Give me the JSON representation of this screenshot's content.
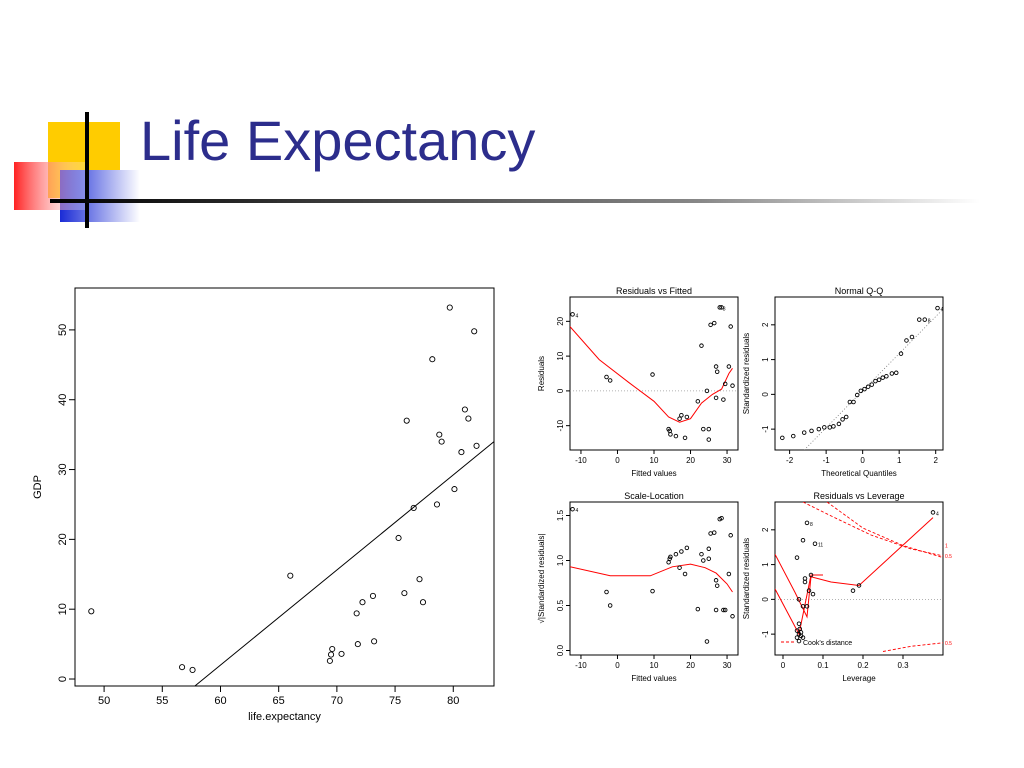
{
  "slide": {
    "title": "Life Expectancy",
    "colors": {
      "title": "#2c2d8c",
      "accent_yellow": "#ffcc00",
      "accent_blue": "#2233cc",
      "accent_red": "#ff3b3b",
      "fit_line": "#ff0000"
    }
  },
  "chart_data": [
    {
      "type": "scatter",
      "title": "",
      "xlabel": "life.expectancy",
      "ylabel": "GDP",
      "xlim": [
        47.5,
        83.5
      ],
      "ylim": [
        -1,
        56
      ],
      "xticks": [
        50,
        55,
        60,
        65,
        70,
        75,
        80
      ],
      "yticks": [
        0,
        10,
        20,
        30,
        40,
        50
      ],
      "grid": false,
      "points": [
        [
          48.9,
          9.7
        ],
        [
          56.7,
          1.7
        ],
        [
          57.6,
          1.3
        ],
        [
          66,
          14.8
        ],
        [
          69.4,
          2.6
        ],
        [
          69.5,
          3.5
        ],
        [
          69.6,
          4.3
        ],
        [
          70.4,
          3.6
        ],
        [
          71.7,
          9.4
        ],
        [
          71.8,
          5
        ],
        [
          72.2,
          11
        ],
        [
          73.1,
          11.9
        ],
        [
          73.2,
          5.4
        ],
        [
          75.3,
          20.2
        ],
        [
          75.8,
          12.3
        ],
        [
          76,
          37
        ],
        [
          76.6,
          24.5
        ],
        [
          77.1,
          14.3
        ],
        [
          77.4,
          11
        ],
        [
          78.2,
          45.8
        ],
        [
          78.6,
          25
        ],
        [
          78.8,
          35
        ],
        [
          79,
          34
        ],
        [
          79.7,
          53.2
        ],
        [
          80.1,
          27.2
        ],
        [
          80.7,
          32.5
        ],
        [
          81,
          38.6
        ],
        [
          81.3,
          37.3
        ],
        [
          81.8,
          49.8
        ],
        [
          82,
          33.4
        ]
      ],
      "fit_line": [
        [
          57.8,
          -1
        ],
        [
          83.5,
          34
        ]
      ]
    },
    {
      "type": "scatter",
      "title": "Residuals vs Fitted",
      "xlabel": "Fitted values",
      "ylabel": "Residuals",
      "xlim": [
        -13,
        33
      ],
      "ylim": [
        -17,
        27
      ],
      "xticks": [
        -10,
        0,
        10,
        20,
        30
      ],
      "yticks": [
        -10,
        0,
        10,
        20
      ],
      "refline": 0,
      "points": [
        [
          -12.3,
          22
        ],
        [
          -3,
          4
        ],
        [
          -2,
          3
        ],
        [
          9.6,
          4.7
        ],
        [
          14,
          -11
        ],
        [
          14.3,
          -11.5
        ],
        [
          14.5,
          -12.5
        ],
        [
          16,
          -13
        ],
        [
          17,
          -8
        ],
        [
          17.5,
          -7
        ],
        [
          18.5,
          -13.5
        ],
        [
          19,
          -7.5
        ],
        [
          22,
          -3
        ],
        [
          23,
          13
        ],
        [
          23.5,
          -11
        ],
        [
          24.5,
          0
        ],
        [
          25,
          -11
        ],
        [
          25,
          -14
        ],
        [
          25.5,
          19
        ],
        [
          26.5,
          19.5
        ],
        [
          27,
          -2
        ],
        [
          27,
          7
        ],
        [
          27.3,
          5.5
        ],
        [
          28,
          24
        ],
        [
          28.5,
          24
        ],
        [
          29,
          -2.5
        ],
        [
          29.5,
          2
        ],
        [
          30.5,
          7
        ],
        [
          31,
          18.5
        ],
        [
          31.5,
          1.5
        ]
      ],
      "labels": [
        {
          "x": -12.3,
          "y": 22,
          "text": "4"
        },
        {
          "x": 28,
          "y": 24,
          "text": "8"
        }
      ],
      "lowess": [
        [
          -13,
          18.5
        ],
        [
          -5,
          9
        ],
        [
          3,
          2.5
        ],
        [
          10,
          -3
        ],
        [
          14,
          -7.5
        ],
        [
          17,
          -9
        ],
        [
          20,
          -8
        ],
        [
          23,
          -3.5
        ],
        [
          26,
          -1
        ],
        [
          28.5,
          0.5
        ],
        [
          30.5,
          5
        ],
        [
          31.5,
          6.5
        ]
      ]
    },
    {
      "type": "scatter",
      "title": "Normal Q-Q",
      "xlabel": "Theoretical Quantiles",
      "ylabel": "Standardized residuals",
      "xlim": [
        -2.4,
        2.2
      ],
      "ylim": [
        -1.6,
        2.8
      ],
      "xticks": [
        -2,
        -1,
        0,
        1,
        2
      ],
      "yticks": [
        -1,
        0,
        1,
        2
      ],
      "points": [
        [
          -2.2,
          -1.25
        ],
        [
          -1.9,
          -1.2
        ],
        [
          -1.6,
          -1.1
        ],
        [
          -1.4,
          -1.05
        ],
        [
          -1.2,
          -1
        ],
        [
          -1.05,
          -0.95
        ],
        [
          -0.9,
          -0.95
        ],
        [
          -0.8,
          -0.92
        ],
        [
          -0.65,
          -0.85
        ],
        [
          -0.55,
          -0.72
        ],
        [
          -0.45,
          -0.65
        ],
        [
          -0.35,
          -0.22
        ],
        [
          -0.25,
          -0.22
        ],
        [
          -0.15,
          -0.02
        ],
        [
          -0.05,
          0.1
        ],
        [
          0.05,
          0.15
        ],
        [
          0.15,
          0.22
        ],
        [
          0.25,
          0.28
        ],
        [
          0.35,
          0.38
        ],
        [
          0.45,
          0.42
        ],
        [
          0.55,
          0.48
        ],
        [
          0.65,
          0.52
        ],
        [
          0.8,
          0.6
        ],
        [
          0.92,
          0.62
        ],
        [
          1.05,
          1.17
        ],
        [
          1.2,
          1.55
        ],
        [
          1.35,
          1.65
        ],
        [
          1.55,
          2.15
        ],
        [
          1.7,
          2.15
        ],
        [
          2.05,
          2.48
        ]
      ],
      "labels": [
        {
          "x": 2.05,
          "y": 2.48,
          "text": "4"
        },
        {
          "x": 1.7,
          "y": 2.15,
          "text": "8"
        }
      ],
      "refline": [
        [
          -1.6,
          -1.6
        ],
        [
          2.2,
          2.45
        ]
      ]
    },
    {
      "type": "scatter",
      "title": "Scale-Location",
      "xlabel": "Fitted values",
      "ylabel": "√|Standardized residuals|",
      "xlim": [
        -13,
        33
      ],
      "ylim": [
        -0.05,
        1.65
      ],
      "xticks": [
        -10,
        0,
        10,
        20,
        30
      ],
      "yticks": [
        0.0,
        0.5,
        1.0,
        1.5
      ],
      "points": [
        [
          -12.3,
          1.57
        ],
        [
          -3,
          0.65
        ],
        [
          -2,
          0.5
        ],
        [
          9.6,
          0.66
        ],
        [
          14,
          0.98
        ],
        [
          14.3,
          1.02
        ],
        [
          14.5,
          1.04
        ],
        [
          16,
          1.07
        ],
        [
          17,
          0.92
        ],
        [
          17.5,
          1.1
        ],
        [
          18.5,
          0.85
        ],
        [
          19,
          1.14
        ],
        [
          22,
          0.46
        ],
        [
          23,
          1.07
        ],
        [
          23.5,
          1.0
        ],
        [
          24.5,
          0.1
        ],
        [
          25,
          1.13
        ],
        [
          25,
          1.02
        ],
        [
          25.5,
          1.3
        ],
        [
          26.5,
          1.31
        ],
        [
          27,
          0.45
        ],
        [
          27,
          0.78
        ],
        [
          27.3,
          0.72
        ],
        [
          28,
          1.46
        ],
        [
          28.5,
          1.47
        ],
        [
          29,
          0.45
        ],
        [
          29.5,
          0.45
        ],
        [
          30.5,
          0.85
        ],
        [
          31,
          1.28
        ],
        [
          31.5,
          0.38
        ]
      ],
      "labels": [
        {
          "x": -12.3,
          "y": 1.57,
          "text": "4"
        }
      ],
      "lowess": [
        [
          -13,
          0.93
        ],
        [
          -2,
          0.83
        ],
        [
          9,
          0.83
        ],
        [
          15,
          0.93
        ],
        [
          20,
          0.96
        ],
        [
          24,
          0.92
        ],
        [
          27,
          0.86
        ],
        [
          30,
          0.74
        ],
        [
          31.5,
          0.65
        ]
      ]
    },
    {
      "type": "scatter",
      "title": "Residuals vs Leverage",
      "xlabel": "Leverage",
      "ylabel": "Standardized residuals",
      "xlim": [
        -0.02,
        0.4
      ],
      "ylim": [
        -1.6,
        2.8
      ],
      "xticks": [
        0.0,
        0.1,
        0.2,
        0.3
      ],
      "yticks": [
        -1,
        0,
        1,
        2
      ],
      "refline": 0,
      "points": [
        [
          0.035,
          -1.1
        ],
        [
          0.035,
          -0.9
        ],
        [
          0.04,
          -1.2
        ],
        [
          0.04,
          -1.0
        ],
        [
          0.04,
          -0.7
        ],
        [
          0.042,
          -0.85
        ],
        [
          0.045,
          -0.95
        ],
        [
          0.045,
          -1.05
        ],
        [
          0.05,
          -1.1
        ],
        [
          0.035,
          1.2
        ],
        [
          0.04,
          0.0
        ],
        [
          0.05,
          -0.2
        ],
        [
          0.05,
          1.7
        ],
        [
          0.055,
          0.6
        ],
        [
          0.055,
          0.5
        ],
        [
          0.06,
          -0.2
        ],
        [
          0.06,
          2.2
        ],
        [
          0.065,
          0.25
        ],
        [
          0.07,
          0.7
        ],
        [
          0.075,
          0.15
        ],
        [
          0.08,
          1.6
        ],
        [
          0.175,
          0.25
        ],
        [
          0.19,
          0.4
        ],
        [
          0.375,
          2.5
        ]
      ],
      "labels": [
        {
          "x": 0.06,
          "y": 2.2,
          "text": "8"
        },
        {
          "x": 0.08,
          "y": 1.6,
          "text": "11"
        },
        {
          "x": 0.375,
          "y": 2.5,
          "text": "4"
        }
      ],
      "lowess": [
        [
          -0.02,
          1.3
        ],
        [
          0.03,
          0.2
        ],
        [
          0.06,
          -0.5
        ],
        [
          0.07,
          0.65
        ],
        [
          0.12,
          0.5
        ],
        [
          0.19,
          0.4
        ],
        [
          0.375,
          2.35
        ]
      ],
      "lowess2": [
        [
          -0.02,
          0.3
        ],
        [
          0.04,
          -1.0
        ],
        [
          0.07,
          0.7
        ],
        [
          0.1,
          0.7
        ]
      ],
      "cooks": [
        {
          "level": 1,
          "upper": [
            [
              0.11,
              2.8
            ],
            [
              0.2,
              2.05
            ],
            [
              0.3,
              1.55
            ],
            [
              0.4,
              1.2
            ]
          ],
          "lower": []
        },
        {
          "level": 0.5,
          "upper": [
            [
              0.05,
              2.8
            ],
            [
              0.12,
              2.4
            ],
            [
              0.22,
              1.85
            ],
            [
              0.32,
              1.45
            ],
            [
              0.4,
              1.25
            ]
          ],
          "lower": [
            [
              0.25,
              -1.5
            ],
            [
              0.32,
              -1.35
            ],
            [
              0.4,
              -1.25
            ]
          ]
        }
      ],
      "cooks_labels": [
        {
          "text": "1"
        },
        {
          "text": "0.5"
        },
        {
          "text": "0.5"
        }
      ],
      "legend": "Cook's distance"
    }
  ]
}
